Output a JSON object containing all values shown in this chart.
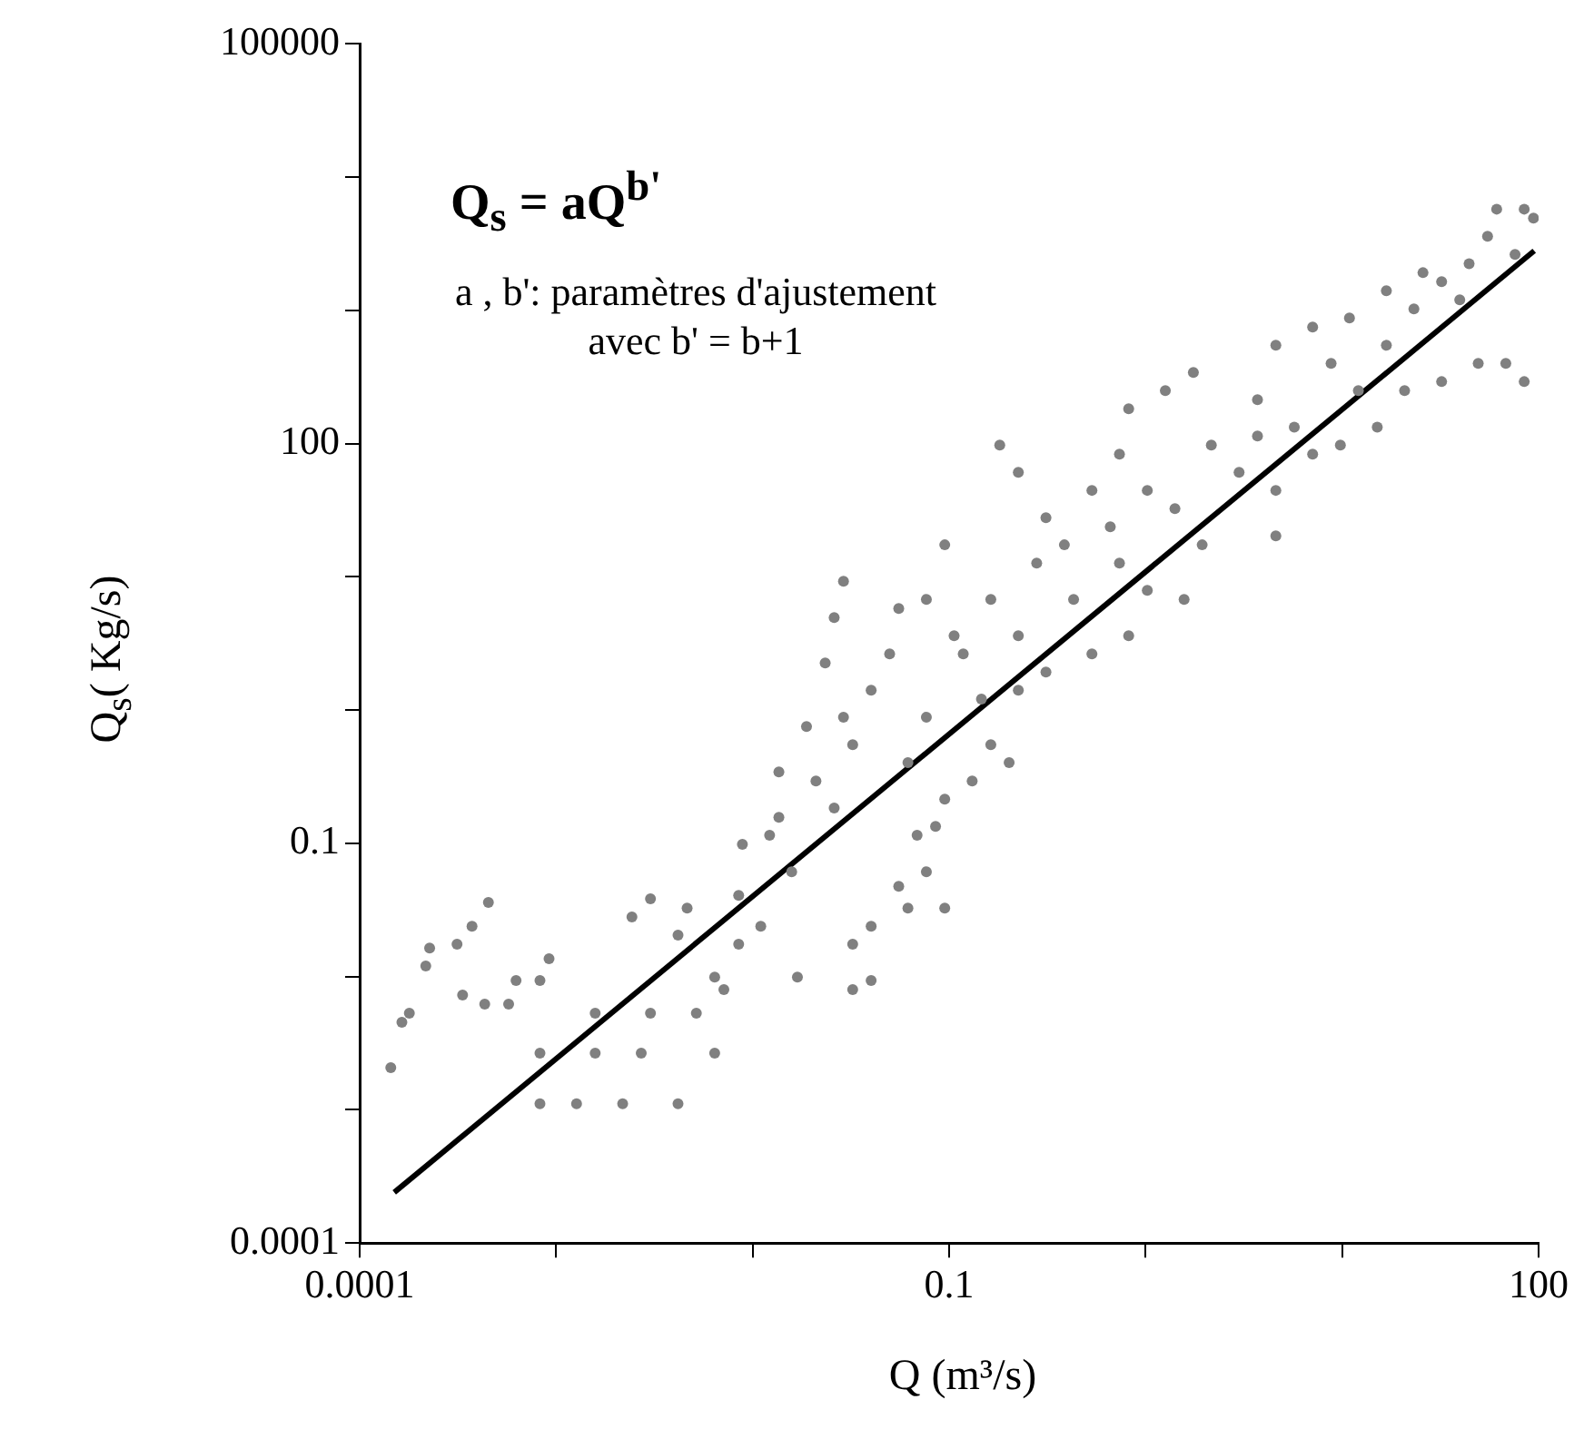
{
  "chart_data": {
    "type": "scatter",
    "xlabel": "Q (m³/s)",
    "ylabel": "Q$_{s}$( Kg/s)",
    "annotations": [
      "Q$_{s}$ = aQ$^{b'}$",
      "a , b': paramètres d'ajustement",
      "avec b' = b+1"
    ],
    "log": "xy",
    "grid": false,
    "legend": false,
    "marker": "circle",
    "xlim": [
      0.0001,
      100
    ],
    "xticks": [
      0.0001,
      {
        "value": 0.001,
        "label": null
      },
      {
        "value": 0.01,
        "label": null
      },
      0.1,
      {
        "value": 1,
        "label": null
      },
      {
        "value": 10,
        "label": null
      },
      100
    ],
    "ylim": [
      0.0001,
      100000
    ],
    "yticks": [
      0.0001,
      {
        "value": 0.001,
        "label": null
      },
      {
        "value": 0.01,
        "label": null
      },
      0.1,
      {
        "value": 1,
        "label": null
      },
      {
        "value": 10,
        "label": null
      },
      100,
      {
        "value": 1000,
        "label": null
      },
      {
        "value": 10000,
        "label": null
      },
      100000
    ],
    "series": [
      {
        "color": "#808080",
        "x": [
          0.000144,
          0.000164,
          0.000179,
          0.000217,
          0.000227,
          0.000313,
          0.000373,
          0.000334,
          0.000433,
          0.000452,
          0.000573,
          0.000625,
          0.000827,
          0.00092,
          0.000827,
          0.00127,
          0.00218,
          0.00417,
          0.000827,
          0.00158,
          0.00271,
          0.00641,
          0.00158,
          0.00302,
          0.00517,
          0.00714,
          0.00849,
          0.011,
          0.0158,
          0.00887,
          0.0136,
          0.021,
          0.0136,
          0.026,
          0.0188,
          0.029,
          0.00302,
          0.00464,
          0.00417,
          0.00243,
          0.00641,
          0.0169,
          0.0323,
          0.00849,
          0.0122,
          0.0401,
          0.0323,
          0.0401,
          0.0617,
          0.0554,
          0.0766,
          0.095,
          0.0687,
          0.0853,
          0.095,
          0.0323,
          0.0401,
          0.0498,
          0.0554,
          0.0766,
          0.095,
          0.118,
          0.146,
          0.163,
          0.131,
          0.202,
          0.0766,
          0.0234,
          0.026,
          0.029,
          0.0617,
          0.106,
          0.163,
          0.225,
          0.279,
          0.311,
          0.225,
          0.181,
          0.386,
          0.43,
          0.533,
          0.661,
          0.225,
          0.311,
          0.533,
          0.736,
          0.82,
          1.26,
          1.75,
          1.02,
          1.41,
          2.16,
          1.94,
          2.99,
          3.71,
          4.6,
          7.08,
          8.79,
          10.9,
          12.1,
          16.8,
          23.2,
          32.1,
          44.3,
          55,
          75.9,
          84.5,
          4.6,
          7.08,
          9.8,
          15.1,
          20.8,
          32.1,
          49.3,
          68.1,
          84.5,
          3.71,
          5.71,
          16.8,
          25.8,
          39.7,
          61.2,
          94.2,
          0.736,
          1.02,
          1.57,
          0.82,
          4.6
        ],
        "values": [
          0.00207,
          0.00454,
          0.00531,
          0.012,
          0.0164,
          0.0175,
          0.0239,
          0.00726,
          0.00621,
          0.036,
          0.00621,
          0.00933,
          0.00933,
          0.0136,
          0.00111,
          0.00111,
          0.00111,
          0.00111,
          0.00266,
          0.00266,
          0.00266,
          0.00266,
          0.00531,
          0.00531,
          0.00531,
          0.00798,
          0.0175,
          0.0239,
          0.0612,
          0.0982,
          0.157,
          0.294,
          0.344,
          0.184,
          0.754,
          0.883,
          0.0383,
          0.0327,
          0.0205,
          0.028,
          0.00993,
          0.00993,
          0.00798,
          0.0407,
          0.115,
          0.00933,
          0.0175,
          0.0239,
          0.0327,
          0.0476,
          0.0612,
          0.0327,
          0.115,
          0.134,
          0.215,
          0.551,
          1.41,
          2.64,
          5.79,
          6.78,
          17.4,
          2.64,
          1.21,
          0.551,
          0.294,
          0.403,
          0.883,
          2.26,
          4.95,
          9.27,
          0.403,
          3.62,
          6.78,
          3.62,
          12.7,
          27.8,
          61,
          97.5,
          17.4,
          6.78,
          2.64,
          23.8,
          1.41,
          1.93,
          44.6,
          83.4,
          183,
          250,
          342,
          44.6,
          32.5,
          97.5,
          17.4,
          61,
          214,
          547,
          750,
          400,
          877,
          250,
          547,
          1026,
          1641,
          2244,
          3597,
          2630,
          5754,
          44.6,
          83.4,
          97.5,
          133,
          250,
          292,
          400,
          400,
          292,
          114,
          133,
          1403,
          1919,
          1200,
          5754,
          4920,
          12.7,
          7.93,
          6.78,
          3.62,
          20.3
        ]
      },
      {
        "type": "line",
        "color": "#000000",
        "marker": "none",
        "line_style": "solid",
        "x": [
          0.00015,
          95
        ],
        "values": [
          0.00024,
          2800
        ]
      }
    ]
  }
}
